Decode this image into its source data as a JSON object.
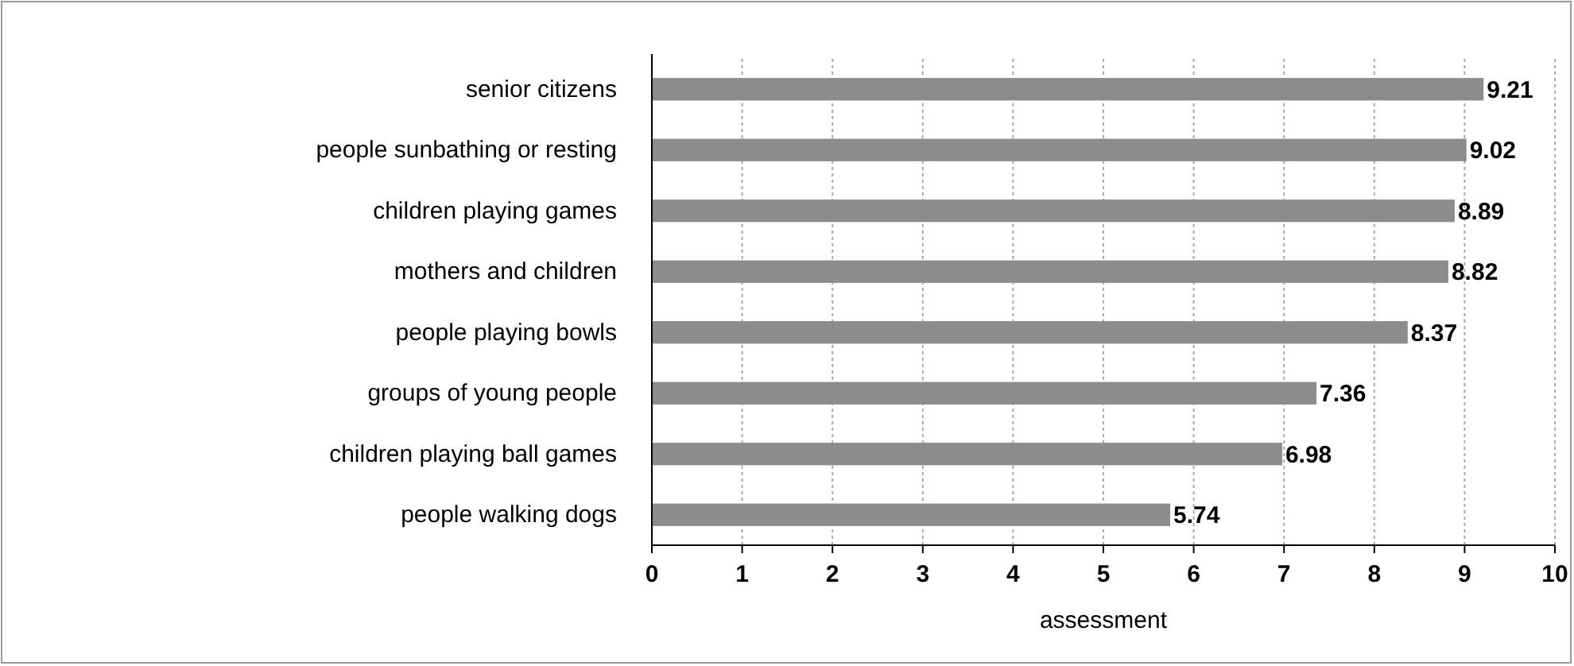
{
  "chart_data": {
    "type": "bar",
    "orientation": "horizontal",
    "categories": [
      "senior citizens",
      "people sunbathing or resting",
      "children playing games",
      "mothers and children",
      "people playing bowls",
      "groups of young people",
      "children playing ball games",
      "people walking dogs"
    ],
    "values": [
      9.21,
      9.02,
      8.89,
      8.82,
      8.37,
      7.36,
      6.98,
      5.74
    ],
    "color": "#8c8c8c",
    "xlim": [
      0,
      10
    ],
    "xticks": [
      0,
      1,
      2,
      3,
      4,
      5,
      6,
      7,
      8,
      9,
      10
    ],
    "xlabel": "assessment",
    "grid": "x",
    "data_labels": true
  }
}
